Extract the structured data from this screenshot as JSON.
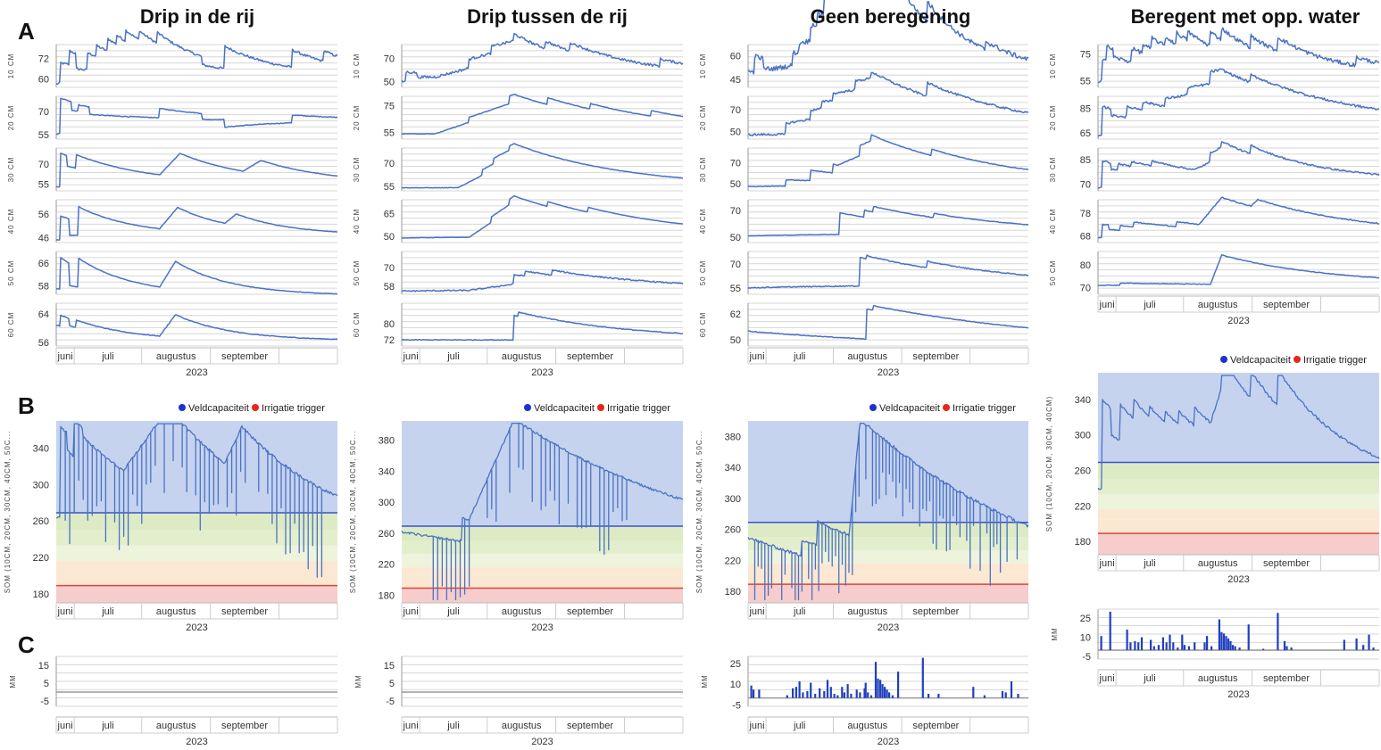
{
  "columns": [
    {
      "title": "Drip in de rij"
    },
    {
      "title": "Drip tussen de rij"
    },
    {
      "title": "Geen beregening"
    },
    {
      "title": "Beregent met opp. water"
    }
  ],
  "panel_labels": [
    "A",
    "B",
    "C"
  ],
  "legend": {
    "field_capacity": "Veldcapaciteit",
    "irrigation_trigger": "Irrigatie trigger",
    "colors": {
      "field_capacity": "#1f2fd6",
      "irrigation_trigger": "#e8261c"
    }
  },
  "colors": {
    "line": "#4a72c4",
    "bar": "#1f3fbf",
    "zone_wet": "#c5d3ef",
    "zone_green": "#dcebc4",
    "zone_pale": "#eef3dc",
    "zone_peach": "#fbe8d2",
    "zone_red": "#f6cccc",
    "fc_line": "#3b4fcf",
    "trigger_line": "#d9453b",
    "grid": "#d6d6d6"
  },
  "x_axis": {
    "months": [
      "juni",
      "juli",
      "augustus",
      "september"
    ],
    "year": "2023"
  },
  "y_labels": {
    "sum": "SOM (10CM, 20CM, 30CM, 40CM, 50C...",
    "sum_short": "SOM (10CM, 20CM, 30CM, 40CM)",
    "rain": "MM"
  },
  "chart_data": [
    {
      "type": "line",
      "panel": "A",
      "column": "Drip in de rij",
      "series": [
        {
          "name": "10CM",
          "ticks": [
            60,
            72
          ]
        },
        {
          "name": "20CM",
          "ticks": [
            55,
            70
          ]
        },
        {
          "name": "30CM",
          "ticks": [
            55,
            70
          ]
        },
        {
          "name": "40CM",
          "ticks": [
            46,
            56
          ]
        },
        {
          "name": "50CM",
          "ticks": [
            58,
            66
          ]
        },
        {
          "name": "60CM",
          "ticks": [
            56,
            64
          ]
        }
      ]
    },
    {
      "type": "line",
      "panel": "A",
      "column": "Drip tussen de rij",
      "series": [
        {
          "name": "10CM",
          "ticks": [
            50,
            70
          ]
        },
        {
          "name": "20CM",
          "ticks": [
            55,
            75
          ]
        },
        {
          "name": "30CM",
          "ticks": [
            55,
            70
          ]
        },
        {
          "name": "40CM",
          "ticks": [
            50,
            65
          ]
        },
        {
          "name": "50CM",
          "ticks": [
            58,
            70
          ]
        },
        {
          "name": "60CM",
          "ticks": [
            72,
            80
          ]
        }
      ]
    },
    {
      "type": "line",
      "panel": "A",
      "column": "Geen beregening",
      "series": [
        {
          "name": "10CM",
          "ticks": [
            45,
            60
          ]
        },
        {
          "name": "20CM",
          "ticks": [
            50,
            70
          ]
        },
        {
          "name": "30CM",
          "ticks": [
            50,
            70
          ]
        },
        {
          "name": "40CM",
          "ticks": [
            50,
            70
          ]
        },
        {
          "name": "50CM",
          "ticks": [
            55,
            70
          ]
        },
        {
          "name": "60CM",
          "ticks": [
            50,
            62
          ]
        }
      ]
    },
    {
      "type": "line",
      "panel": "A",
      "column": "Beregent met opp. water",
      "series": [
        {
          "name": "10CM",
          "ticks": [
            55,
            75
          ]
        },
        {
          "name": "20CM",
          "ticks": [
            65,
            85
          ]
        },
        {
          "name": "30CM",
          "ticks": [
            70,
            85
          ]
        },
        {
          "name": "40CM",
          "ticks": [
            68,
            78
          ]
        },
        {
          "name": "50CM",
          "ticks": [
            70,
            80
          ]
        }
      ]
    },
    {
      "type": "line",
      "panel": "B",
      "column": "Drip in de rij",
      "ylim": [
        170,
        370
      ],
      "ticks": [
        180,
        220,
        260,
        300,
        340
      ],
      "field_capacity": 269,
      "irrigation_trigger": 189
    },
    {
      "type": "line",
      "panel": "B",
      "column": "Drip tussen de rij",
      "ylim": [
        170,
        405
      ],
      "ticks": [
        180,
        220,
        260,
        300,
        340,
        380
      ],
      "field_capacity": 269,
      "irrigation_trigger": 189
    },
    {
      "type": "line",
      "panel": "B",
      "column": "Geen beregening",
      "ylim": [
        165,
        400
      ],
      "ticks": [
        180,
        220,
        260,
        300,
        340,
        380
      ],
      "field_capacity": 269,
      "irrigation_trigger": 189
    },
    {
      "type": "line",
      "panel": "B",
      "column": "Beregent met opp. water",
      "ylim": [
        165,
        370
      ],
      "ticks": [
        180,
        220,
        260,
        300,
        340
      ],
      "field_capacity": 269,
      "irrigation_trigger": 189
    },
    {
      "type": "bar",
      "panel": "C",
      "column": "Drip in de rij",
      "ylim": [
        -8,
        20
      ],
      "ticks": [
        -5,
        5,
        15
      ],
      "values": []
    },
    {
      "type": "bar",
      "panel": "C",
      "column": "Drip tussen de rij",
      "ylim": [
        -8,
        20
      ],
      "ticks": [
        -5,
        5,
        15
      ],
      "values": []
    },
    {
      "type": "bar",
      "panel": "C",
      "column": "Geen beregening",
      "ylim": [
        -6,
        30
      ],
      "ticks": [
        -5,
        10,
        25
      ],
      "values": [
        [
          2,
          9
        ],
        [
          4,
          6
        ],
        [
          9,
          6
        ],
        [
          34,
          2
        ],
        [
          39,
          7
        ],
        [
          42,
          8
        ],
        [
          45,
          12
        ],
        [
          48,
          4
        ],
        [
          52,
          5
        ],
        [
          55,
          11
        ],
        [
          59,
          3
        ],
        [
          63,
          7
        ],
        [
          67,
          5
        ],
        [
          70,
          13
        ],
        [
          73,
          8
        ],
        [
          76,
          3
        ],
        [
          79,
          2
        ],
        [
          83,
          8
        ],
        [
          85,
          4
        ],
        [
          88,
          10
        ],
        [
          91,
          3
        ],
        [
          96,
          6
        ],
        [
          99,
          4
        ],
        [
          103,
          7
        ],
        [
          104,
          11
        ],
        [
          106,
          4
        ],
        [
          109,
          2
        ],
        [
          113,
          26
        ],
        [
          115,
          14
        ],
        [
          117,
          13
        ],
        [
          119,
          10
        ],
        [
          121,
          8
        ],
        [
          123,
          6
        ],
        [
          125,
          4
        ],
        [
          128,
          2
        ],
        [
          133,
          19
        ],
        [
          155,
          29
        ],
        [
          160,
          3
        ],
        [
          169,
          3
        ],
        [
          200,
          8
        ],
        [
          210,
          2
        ],
        [
          226,
          5
        ],
        [
          229,
          4
        ],
        [
          234,
          12
        ],
        [
          240,
          3
        ]
      ]
    },
    {
      "type": "bar",
      "panel": "C",
      "column": "Beregent met opp. water",
      "ylim": [
        -7,
        32
      ],
      "ticks": [
        -5,
        10,
        25
      ],
      "values": [
        [
          2,
          11
        ],
        [
          10,
          30
        ],
        [
          25,
          16
        ],
        [
          28,
          6
        ],
        [
          32,
          7
        ],
        [
          35,
          6
        ],
        [
          38,
          10
        ],
        [
          46,
          8
        ],
        [
          49,
          3
        ],
        [
          53,
          4
        ],
        [
          57,
          10
        ],
        [
          60,
          6
        ],
        [
          63,
          12
        ],
        [
          66,
          6
        ],
        [
          70,
          2
        ],
        [
          74,
          12
        ],
        [
          76,
          4
        ],
        [
          80,
          3
        ],
        [
          85,
          6
        ],
        [
          94,
          6
        ],
        [
          96,
          11
        ],
        [
          100,
          3
        ],
        [
          107,
          24
        ],
        [
          109,
          14
        ],
        [
          111,
          13
        ],
        [
          113,
          11
        ],
        [
          115,
          9
        ],
        [
          117,
          7
        ],
        [
          119,
          4
        ],
        [
          121,
          3
        ],
        [
          125,
          2
        ],
        [
          133,
          20
        ],
        [
          146,
          1
        ],
        [
          159,
          29
        ],
        [
          165,
          7
        ],
        [
          167,
          3
        ],
        [
          171,
          2
        ],
        [
          218,
          8
        ],
        [
          229,
          9
        ],
        [
          235,
          4
        ],
        [
          240,
          12
        ],
        [
          244,
          2
        ]
      ]
    }
  ]
}
